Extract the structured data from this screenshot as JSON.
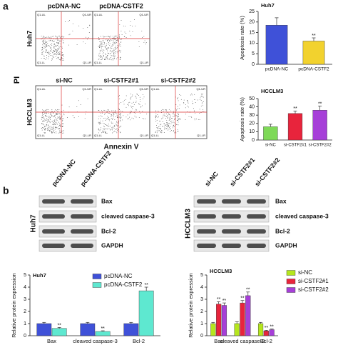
{
  "panel_labels": [
    "a",
    "b"
  ],
  "flow": {
    "y_label": "PI",
    "x_label": "Annexin V",
    "quadrant_labels": [
      "Q1-UL",
      "Q1-UR",
      "Q1-LL",
      "Q1-LR"
    ],
    "rows": [
      {
        "label": "Huh7",
        "columns": [
          "pcDNA-NC",
          "pcDNA-CSTF2"
        ]
      },
      {
        "label": "HCCLM3",
        "columns": [
          "si-NC",
          "si-CSTF2#1",
          "si-CSTF2#2"
        ]
      }
    ]
  },
  "blots": [
    {
      "cell_line": "Huh7",
      "lanes": [
        "pcDNA-NC",
        "pcDNA-CSTF2"
      ],
      "proteins": [
        "Bax",
        "cleaved caspase-3",
        "Bcl-2",
        "GAPDH"
      ]
    },
    {
      "cell_line": "HCCLM3",
      "lanes": [
        "si-NC",
        "si-CSTF2#1",
        "si-CSTF2#2"
      ],
      "proteins": [
        "Bax",
        "cleaved caspase-3",
        "Bcl-2",
        "GAPDH"
      ]
    }
  ],
  "chart_data": [
    {
      "type": "bar",
      "title": "Huh7",
      "y_label": "Apoptosis rate (%)",
      "categories": [
        "pcDNA-NC",
        "pcDNA-CSTF2"
      ],
      "values": [
        18.5,
        11
      ],
      "errors": [
        3.5,
        1.5
      ],
      "sig": [
        null,
        "**"
      ],
      "colors": [
        "#3f51d8",
        "#f2d22e"
      ],
      "ylim": [
        0,
        25
      ],
      "yticks": [
        0,
        5,
        10,
        15,
        20,
        25
      ]
    },
    {
      "type": "bar",
      "title": "HCCLM3",
      "y_label": "Apoptosis rate (%)",
      "categories": [
        "si-NC",
        "si-CSTF2#1",
        "si-CSTF2#2"
      ],
      "values": [
        16,
        32,
        36
      ],
      "errors": [
        3,
        3,
        5
      ],
      "sig": [
        null,
        "**",
        "**"
      ],
      "colors": [
        "#7ed957",
        "#e8243c",
        "#a63fd8"
      ],
      "ylim": [
        0,
        50
      ],
      "yticks": [
        0,
        10,
        20,
        30,
        40,
        50
      ]
    },
    {
      "type": "bar",
      "title": "Huh7",
      "y_label": "Relative protein expression",
      "categories": [
        "Bax",
        "cleaved caspase-3",
        "Bcl-2"
      ],
      "legend": "upper right",
      "ylim": [
        0,
        5
      ],
      "yticks": [
        0,
        1,
        2,
        3,
        4,
        5
      ],
      "series": [
        {
          "name": "pcDNA-NC",
          "color": "#3f51d8",
          "values": [
            1.0,
            1.0,
            1.0
          ],
          "errors": [
            0.1,
            0.1,
            0.1
          ],
          "sig": [
            null,
            null,
            null
          ]
        },
        {
          "name": "pcDNA-CSTF2",
          "color": "#5ee8d0",
          "values": [
            0.6,
            0.35,
            3.7
          ],
          "errors": [
            0.08,
            0.06,
            0.3
          ],
          "sig": [
            "**",
            "**",
            "**"
          ]
        }
      ]
    },
    {
      "type": "bar",
      "title": "HCCLM3",
      "y_label": "Relative protein expression",
      "categories": [
        "Bax",
        "cleaved caspase-3",
        "Bcl-2"
      ],
      "legend": "right",
      "ylim": [
        0,
        5
      ],
      "yticks": [
        0,
        1,
        2,
        3,
        4,
        5
      ],
      "series": [
        {
          "name": "si-NC",
          "color": "#b5e61d",
          "values": [
            1.0,
            1.0,
            1.0
          ],
          "errors": [
            0.1,
            0.15,
            0.1
          ],
          "sig": [
            null,
            null,
            null
          ]
        },
        {
          "name": "si-CSTF2#1",
          "color": "#e8243c",
          "values": [
            2.6,
            2.7,
            0.4
          ],
          "errors": [
            0.2,
            0.2,
            0.05
          ],
          "sig": [
            "**",
            "**",
            "**"
          ]
        },
        {
          "name": "si-CSTF2#2",
          "color": "#a63fd8",
          "values": [
            2.5,
            3.3,
            0.5
          ],
          "errors": [
            0.2,
            0.3,
            0.05
          ],
          "sig": [
            "**",
            "**",
            "**"
          ]
        }
      ]
    }
  ]
}
